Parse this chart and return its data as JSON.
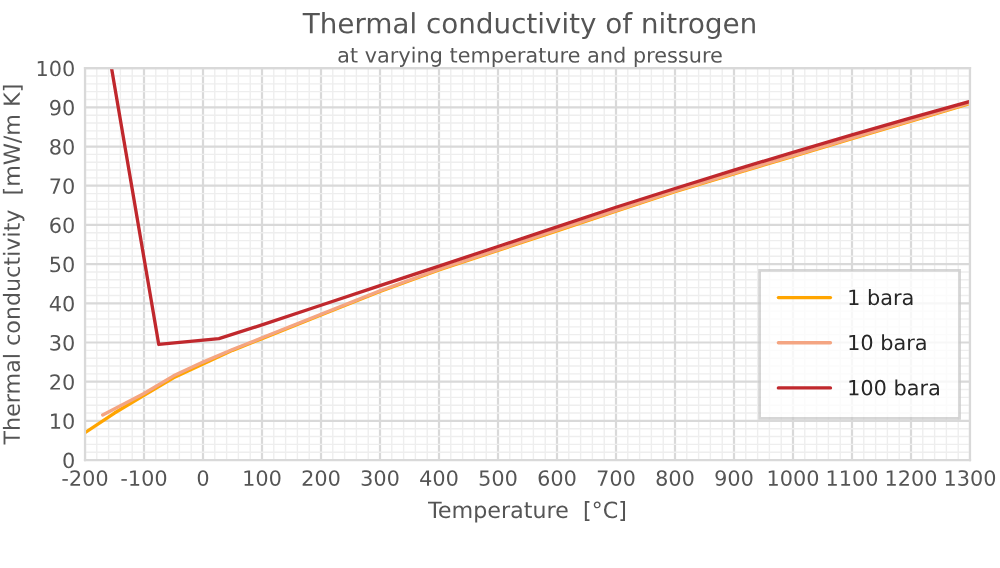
{
  "chart_data": {
    "type": "line",
    "title": "Thermal conductivity of nitrogen",
    "subtitle": "at varying temperature and pressure",
    "xlabel": "Temperature  [°C]",
    "ylabel": "Thermal conductivity  [mW/m K]",
    "xlim": [
      -200,
      1300
    ],
    "xticks": [
      -200,
      -100,
      0,
      100,
      200,
      300,
      400,
      500,
      600,
      700,
      800,
      900,
      1000,
      1100,
      1200,
      1300
    ],
    "ylim": [
      0,
      100
    ],
    "yticks": [
      0,
      10,
      20,
      30,
      40,
      50,
      60,
      70,
      80,
      90,
      100
    ],
    "grid": true,
    "legend": "lower right",
    "marker": "none",
    "line_style": "solid",
    "series": [
      {
        "name": "1 bara",
        "color": "#ffa500",
        "x": [
          -200,
          -150,
          -100,
          -50,
          0,
          50,
          100,
          200,
          300,
          400,
          500,
          600,
          700,
          800,
          900,
          1000,
          1100,
          1200,
          1300
        ],
        "values": [
          7,
          12,
          16.5,
          21,
          24.5,
          28,
          31,
          37,
          43,
          48.5,
          53.5,
          58.5,
          63.5,
          68.5,
          73,
          77.5,
          82,
          86.5,
          91
        ]
      },
      {
        "name": "10 bara",
        "color": "#f4a582",
        "x": [
          -170,
          -100,
          -50,
          0,
          50,
          100,
          200,
          300,
          400,
          500,
          600,
          700,
          800,
          900,
          1000,
          1100,
          1200,
          1300
        ],
        "values": [
          11.5,
          17,
          21.5,
          25,
          28.2,
          31.2,
          37.2,
          43.2,
          48.7,
          53.7,
          58.7,
          63.7,
          68.7,
          73.2,
          77.7,
          82.2,
          86.7,
          91.2
        ]
      },
      {
        "name": "100 bara",
        "color": "#c0282d",
        "x": [
          -155,
          -75,
          27,
          100,
          200,
          300,
          400,
          500,
          600,
          700,
          800,
          900,
          1000,
          1100,
          1200,
          1300
        ],
        "values": [
          100,
          29.5,
          31,
          34.5,
          39.5,
          44.5,
          49.5,
          54.5,
          59.5,
          64.5,
          69.3,
          74,
          78.5,
          83,
          87.3,
          91.5
        ]
      }
    ]
  }
}
